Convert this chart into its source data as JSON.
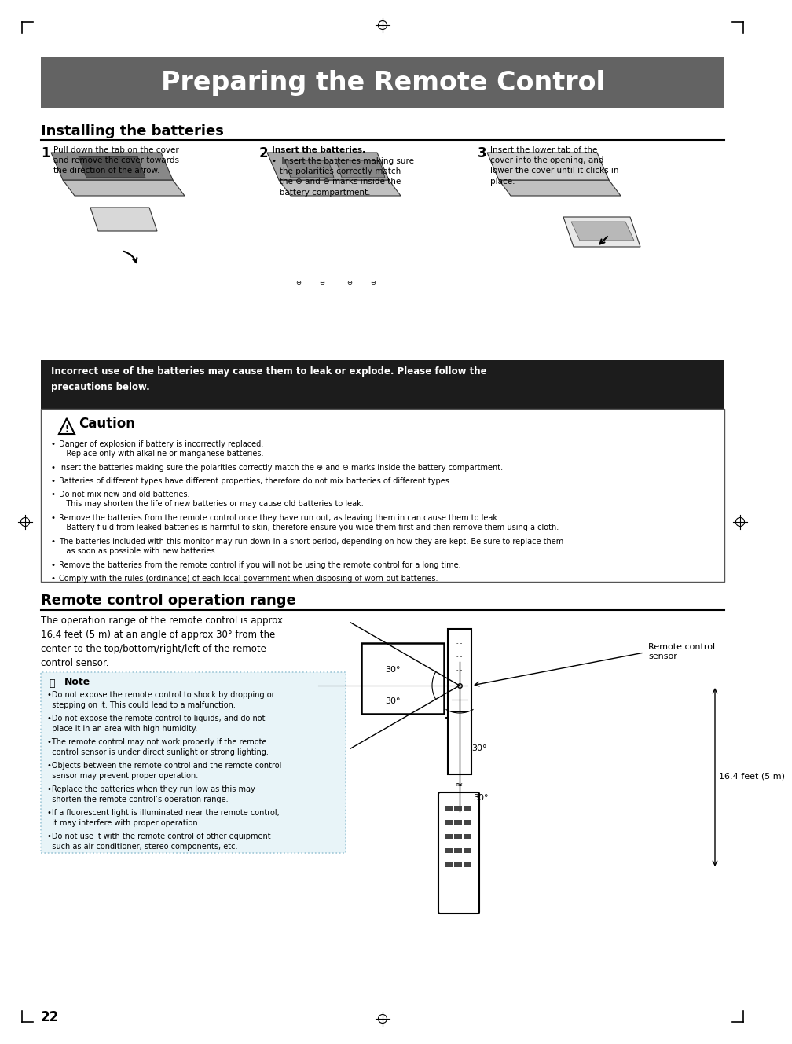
{
  "title": "Preparing the Remote Control",
  "title_bg": "#636363",
  "title_text_color": "#ffffff",
  "section1_title": "Installing the batteries",
  "step1_number": "1",
  "step1_text": "Pull down the tab on the cover\nand remove the cover towards\nthe direction of the arrow.",
  "step2_number": "2",
  "step2_text_line1": "Insert the batteries.",
  "step2_text_bullet": "•  Insert the batteries making sure\n   the polarities correctly match\n   the ⊕ and ⊖ marks inside the\n   battery compartment.",
  "step3_number": "3",
  "step3_text": "Insert the lower tab of the\ncover into the opening, and\nlower the cover until it clicks in\nplace.",
  "warning_bg": "#1c1c1c",
  "warning_text_line1": "Incorrect use of the batteries may cause them to leak or explode. Please follow the",
  "warning_text_line2": "precautions below.",
  "caution_title": "Caution",
  "caution_bullets": [
    "Danger of explosion if battery is incorrectly replaced.\n   Replace only with alkaline or manganese batteries.",
    "Insert the batteries making sure the polarities correctly match the ⊕ and ⊖ marks inside the battery compartment.",
    "Batteries of different types have different properties, therefore do not mix batteries of different types.",
    "Do not mix new and old batteries.\n   This may shorten the life of new batteries or may cause old batteries to leak.",
    "Remove the batteries from the remote control once they have run out, as leaving them in can cause them to leak.\n   Battery fluid from leaked batteries is harmful to skin, therefore ensure you wipe them first and then remove them using a cloth.",
    "The batteries included with this monitor may run down in a short period, depending on how they are kept. Be sure to replace them\n   as soon as possible with new batteries.",
    "Remove the batteries from the remote control if you will not be using the remote control for a long time.",
    "Comply with the rules (ordinance) of each local government when disposing of worn-out batteries."
  ],
  "section2_title": "Remote control operation range",
  "range_text": "The operation range of the remote control is approx.\n16.4 feet (5 m) at an angle of approx 30° from the\ncenter to the top/bottom/right/left of the remote\ncontrol sensor.",
  "note_bg": "#e8f4f8",
  "note_border": "#a0c8d8",
  "note_title": "Note",
  "note_bullets": [
    "•Do not expose the remote control to shock by dropping or\n  stepping on it. This could lead to a malfunction.",
    "•Do not expose the remote control to liquids, and do not\n  place it in an area with high humidity.",
    "•The remote control may not work properly if the remote\n  control sensor is under direct sunlight or strong lighting.",
    "•Objects between the remote control and the remote control\n  sensor may prevent proper operation.",
    "•Replace the batteries when they run low as this may\n  shorten the remote control’s operation range.",
    "•If a fluorescent light is illuminated near the remote control,\n  it may interfere with proper operation.",
    "•Do not use it with the remote control of other equipment\n  such as air conditioner, stereo components, etc."
  ],
  "page_number": "22",
  "remote_sensor_label": "Remote control\nsensor",
  "distance_label": "16.4 feet (5 m)"
}
